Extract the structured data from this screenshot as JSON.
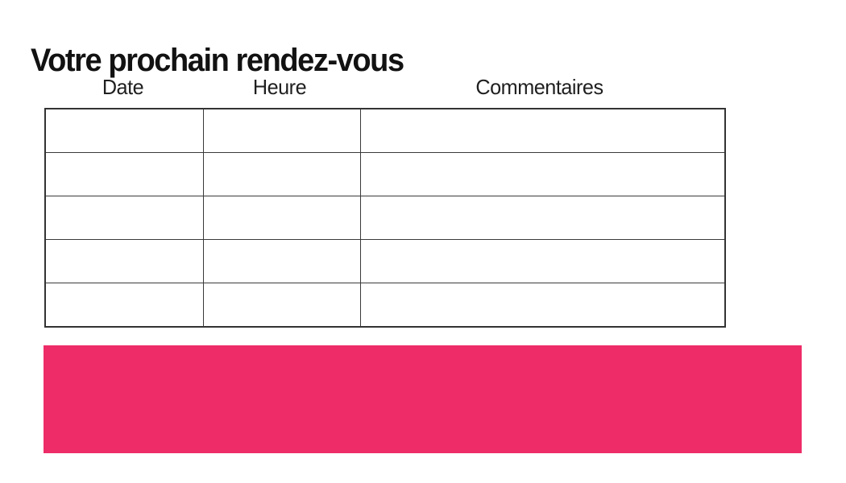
{
  "page": {
    "title": "Votre prochain rendez-vous"
  },
  "table": {
    "columns": [
      {
        "label": "Date"
      },
      {
        "label": "Heure"
      },
      {
        "label": "Commentaires"
      }
    ],
    "rows": [
      [
        "",
        "",
        ""
      ],
      [
        "",
        "",
        ""
      ],
      [
        "",
        "",
        ""
      ],
      [
        "",
        "",
        ""
      ],
      [
        "",
        "",
        ""
      ]
    ]
  },
  "banner": {
    "text": "",
    "color": "#EE2C68"
  },
  "colors": {
    "accent": "#EE2C68",
    "table_border": "#3a3a3a",
    "text": "#121212"
  }
}
